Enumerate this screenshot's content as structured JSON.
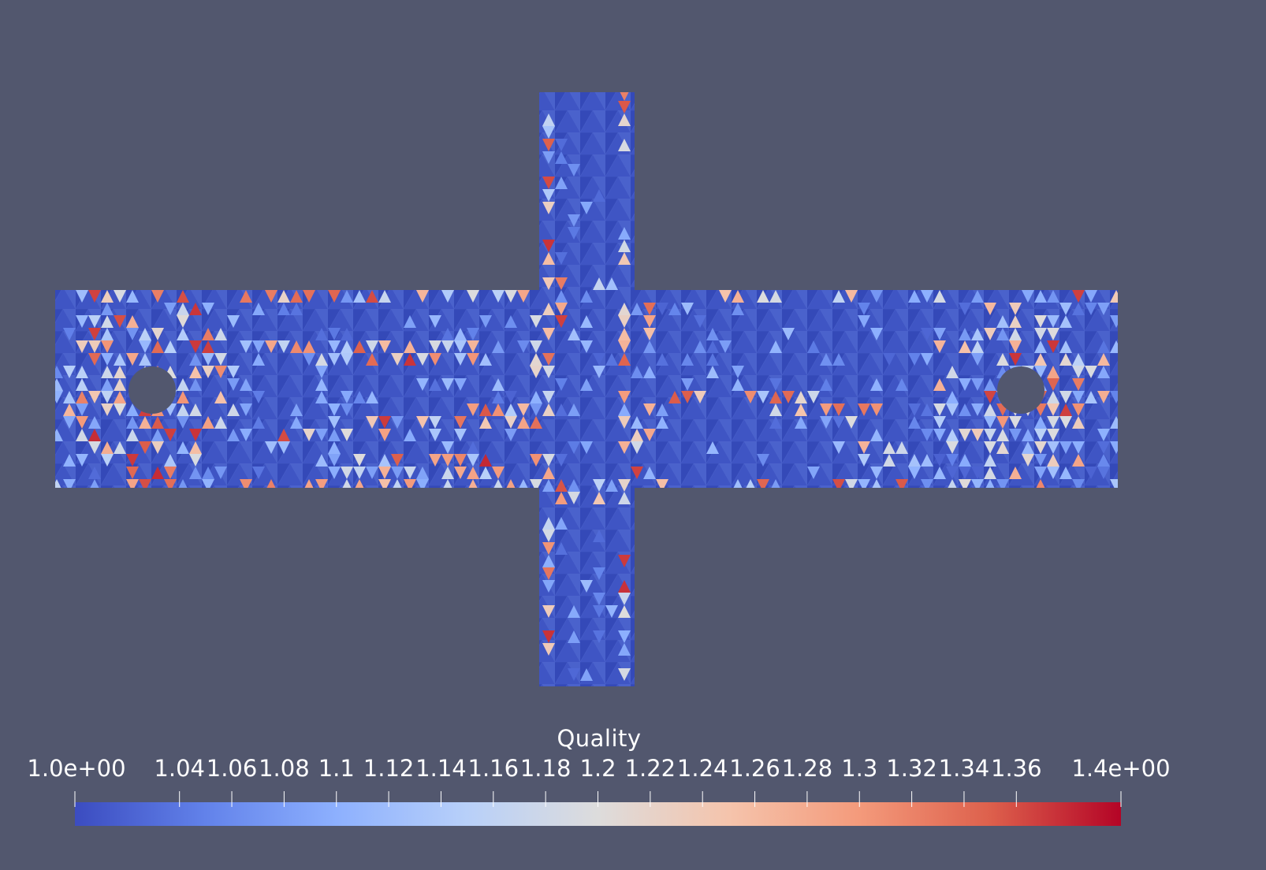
{
  "scalar_bar": {
    "title": "Quality",
    "min_label": "1.0e+00",
    "max_label": "1.4e+00",
    "tick_labels": [
      "1.04",
      "1.06",
      "1.08",
      "1.1",
      "1.12",
      "1.14",
      "1.16",
      "1.18",
      "1.2",
      "1.22",
      "1.24",
      "1.26",
      "1.28",
      "1.3",
      "1.32",
      "1.34",
      "1.36"
    ],
    "range": [
      1.0,
      1.4
    ],
    "colormap": [
      "#3b4cc0",
      "#6282ea",
      "#8db0fe",
      "#b8d0f9",
      "#dddcdc",
      "#f5c4ac",
      "#f49a7b",
      "#dd604c",
      "#b40426"
    ]
  },
  "colors": {
    "background": "#52576e",
    "mesh_base": "#3b4cc0"
  }
}
